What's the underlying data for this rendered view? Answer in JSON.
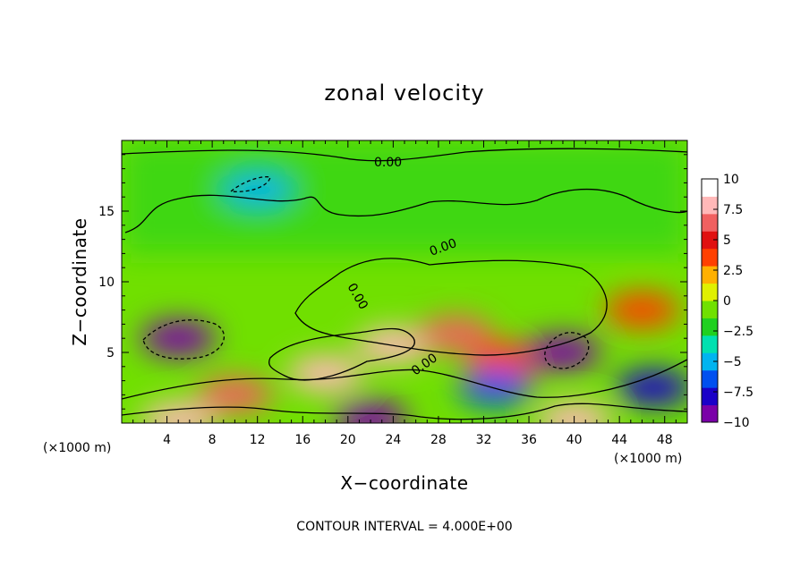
{
  "chart_data": {
    "type": "heatmap",
    "title": "zonal velocity",
    "xlabel": "X−coordinate",
    "ylabel": "Z−coordinate",
    "x_unit_label": "(×1000 m)",
    "x_unit_label_right": "(×1000 m)",
    "xlim": [
      0,
      50
    ],
    "ylim": [
      0,
      20
    ],
    "x_ticks": [
      4,
      8,
      12,
      16,
      20,
      24,
      28,
      32,
      36,
      40,
      44,
      48
    ],
    "y_ticks": [
      5,
      10,
      15
    ],
    "colorbar": {
      "range": [
        -10,
        10
      ],
      "tick_values": [
        10,
        7.5,
        5,
        2.5,
        0,
        -2.5,
        -5,
        -7.5,
        -10
      ],
      "tick_labels": [
        "10",
        "7.5",
        "5",
        "2.5",
        "0",
        "−2.5",
        "−5",
        "−7.5",
        "−10"
      ],
      "colors": [
        "#7a00a8",
        "#1a00c8",
        "#0050f0",
        "#00b4f0",
        "#00e0b0",
        "#20d020",
        "#70e000",
        "#e0f000",
        "#ffb000",
        "#ff4000",
        "#e01010",
        "#f06060",
        "#ffb8b8",
        "#ffffff"
      ]
    },
    "contour_labels": [
      "0.00",
      "0.00",
      "0.00",
      "0.00"
    ],
    "contour_interval_text": "CONTOUR INTERVAL = 4.000E+00",
    "features": [
      {
        "x": 5,
        "z": 6,
        "value": -9
      },
      {
        "x": 10,
        "z": 2,
        "value": 8
      },
      {
        "x": 18,
        "z": 3.5,
        "value": 10
      },
      {
        "x": 24,
        "z": 5.5,
        "value": 9
      },
      {
        "x": 29.5,
        "z": 6.3,
        "value": 7
      },
      {
        "x": 34,
        "z": 4.5,
        "value": 5
      },
      {
        "x": 39,
        "z": 5,
        "value": -9
      },
      {
        "x": 46,
        "z": 8,
        "value": 5
      },
      {
        "x": 47,
        "z": 2.5,
        "value": -7
      },
      {
        "x": 33,
        "z": 2.5,
        "value": -6
      },
      {
        "x": 22,
        "z": 0.3,
        "value": -9
      },
      {
        "x": 5,
        "z": 0.2,
        "value": 11
      },
      {
        "x": 40,
        "z": 0.2,
        "value": 11
      },
      {
        "x": 12,
        "z": 16.5,
        "value": -4
      }
    ]
  }
}
